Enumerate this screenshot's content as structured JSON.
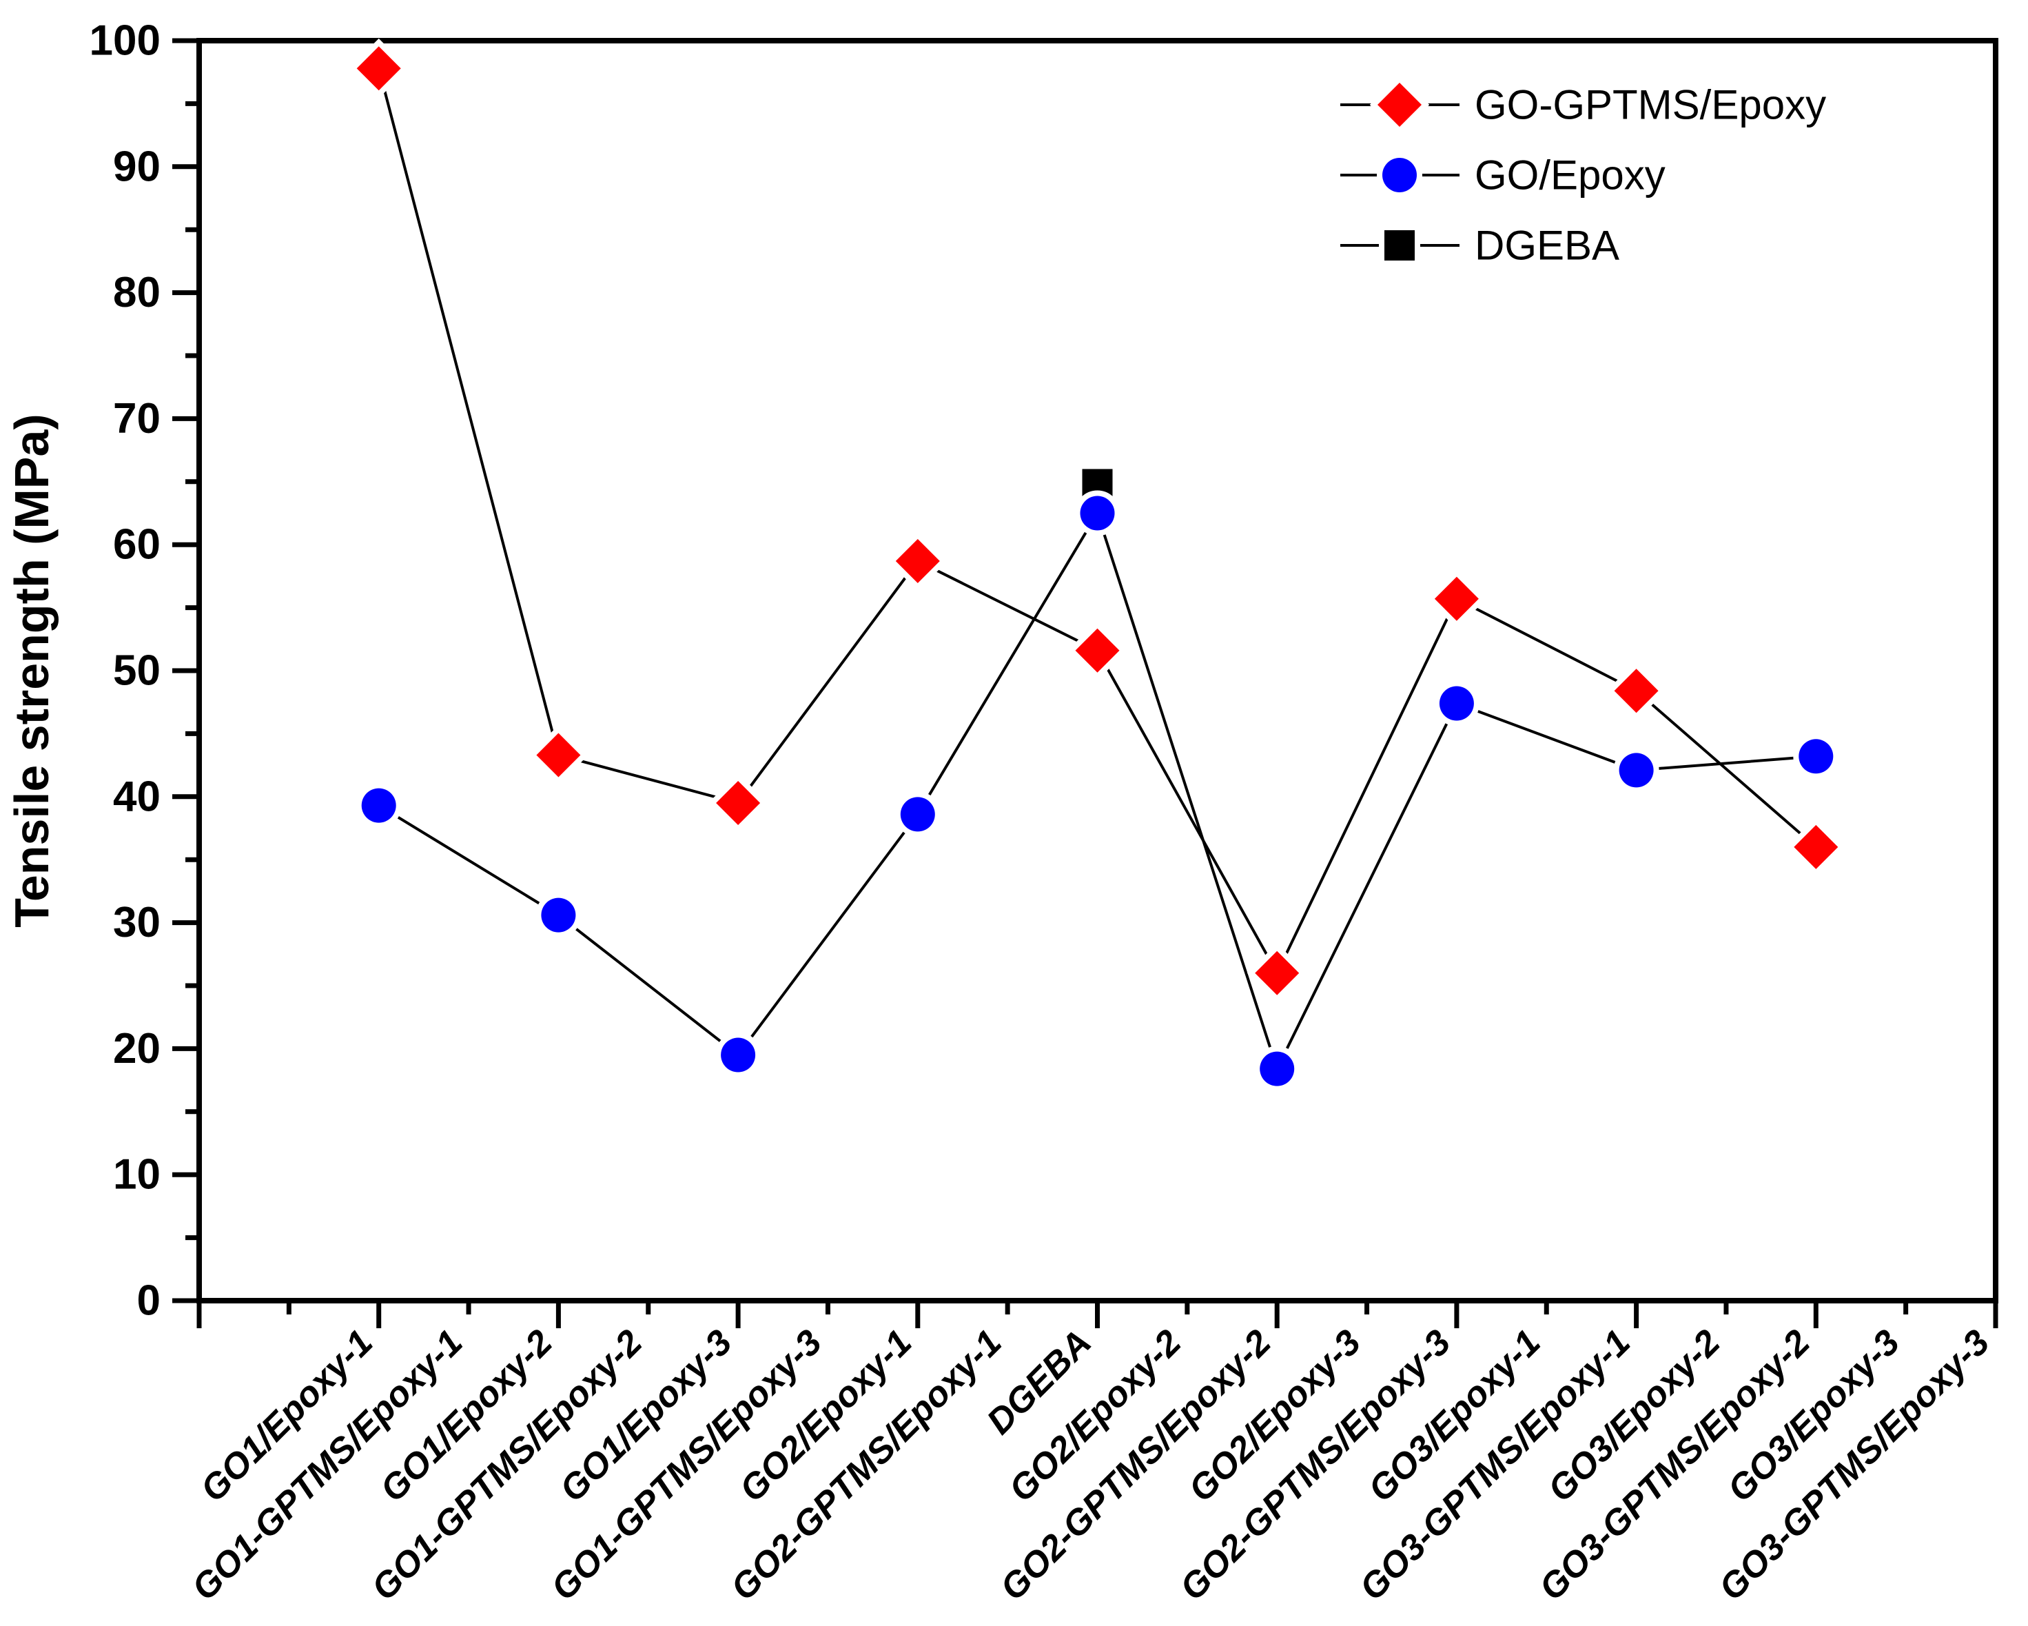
{
  "figure": {
    "background": "#ffffff"
  },
  "chart_data": {
    "type": "line",
    "title": "",
    "xlabel": "",
    "ylabel": "Tensile strength (MPa)",
    "ylim": [
      0,
      100
    ],
    "ytick_step": 10,
    "y_minor_step": 5,
    "yticks": [
      0,
      10,
      20,
      30,
      40,
      50,
      60,
      70,
      80,
      90,
      100
    ],
    "grid": false,
    "slots_total": 20,
    "categories": [
      "GO1/Epoxy-1",
      "GO1-GPTMS/Epoxy-1",
      "GO1/Epoxy-2",
      "GO1-GPTMS/Epoxy-2",
      "GO1/Epoxy-3",
      "GO1-GPTMS/Epoxy-3",
      "GO2/Epoxy-1",
      "GO2-GPTMS/Epoxy-1",
      "DGEBA",
      "GO2/Epoxy-2",
      "GO2-GPTMS/Epoxy-2",
      "GO2/Epoxy-3",
      "GO2-GPTMS/Epoxy-3",
      "GO3/Epoxy-1",
      "GO3-GPTMS/Epoxy-1",
      "GO3/Epoxy-2",
      "GO3-GPTMS/Epoxy-2",
      "GO3/Epoxy-3",
      "GO3-GPTMS/Epoxy-3"
    ],
    "category_slots": [
      2,
      3,
      4,
      5,
      6,
      7,
      8,
      9,
      10,
      11,
      12,
      13,
      14,
      15,
      16,
      17,
      18,
      19,
      20
    ],
    "series": [
      {
        "name": "GO-GPTMS/Epoxy",
        "marker": "diamond",
        "color": "#ff0000",
        "line_color": "#000000",
        "slots": [
          2,
          4,
          6,
          8,
          10,
          12,
          14,
          16,
          18
        ],
        "values": [
          97.8,
          43.3,
          39.5,
          58.7,
          51.6,
          26.0,
          55.7,
          48.4,
          36.0
        ]
      },
      {
        "name": "GO/Epoxy",
        "marker": "circle",
        "color": "#0000ff",
        "line_color": "#000000",
        "slots": [
          2,
          4,
          6,
          8,
          10,
          12,
          14,
          16,
          18
        ],
        "values": [
          39.3,
          30.6,
          19.5,
          38.6,
          62.5,
          18.4,
          47.4,
          42.1,
          43.2
        ]
      },
      {
        "name": "DGEBA",
        "marker": "square",
        "color": "#000000",
        "line_color": "#000000",
        "slots": [
          10
        ],
        "values": [
          64.8
        ]
      }
    ],
    "legend": {
      "position": "top-right",
      "entries": [
        "GO-GPTMS/Epoxy",
        "GO/Epoxy",
        "DGEBA"
      ]
    }
  }
}
